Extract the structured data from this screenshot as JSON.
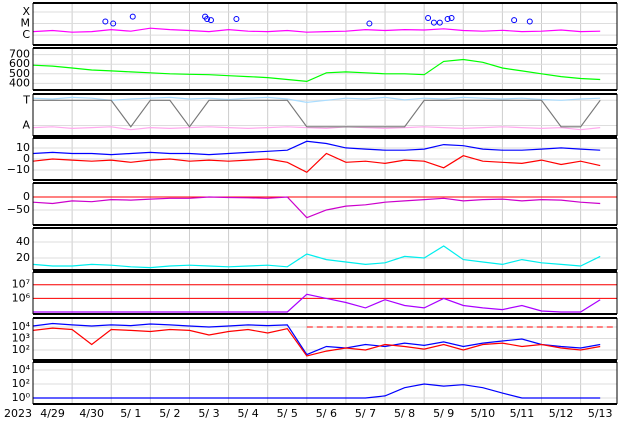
{
  "x_axis": {
    "year": "2023",
    "x": [
      0,
      0.5,
      1,
      1.5,
      2,
      2.5,
      3,
      3.5,
      4,
      4.5,
      5,
      5.5,
      6,
      6.5,
      7,
      7.5,
      8,
      8.5,
      9,
      9.5,
      10,
      10.5,
      11,
      11.5,
      12,
      12.5,
      13,
      13.5,
      14,
      14.5
    ],
    "xlim": [
      0,
      14.93
    ],
    "xticks": [
      {
        "value": 0.5,
        "label": "4/29"
      },
      {
        "value": 1.5,
        "label": "4/30"
      },
      {
        "value": 2.5,
        "label": "5/ 1"
      },
      {
        "value": 3.5,
        "label": "5/ 2"
      },
      {
        "value": 4.5,
        "label": "5/ 3"
      },
      {
        "value": 5.5,
        "label": "5/ 4"
      },
      {
        "value": 6.5,
        "label": "5/ 5"
      },
      {
        "value": 7.5,
        "label": "5/ 6"
      },
      {
        "value": 8.5,
        "label": "5/ 7"
      },
      {
        "value": 9.5,
        "label": "5/ 8"
      },
      {
        "value": 10.5,
        "label": "5/ 9"
      },
      {
        "value": 11.5,
        "label": "5/10"
      },
      {
        "value": 12.5,
        "label": "5/11"
      },
      {
        "value": 13.5,
        "label": "5/12"
      },
      {
        "value": 14.5,
        "label": "5/13"
      }
    ],
    "xgrid": [
      1,
      2,
      3,
      4,
      5,
      6,
      7,
      8,
      9,
      10,
      11,
      12,
      13,
      14
    ]
  },
  "chart_data": [
    {
      "type": "line",
      "log": true,
      "ylim": [
        1.4e-07,
        0.0006
      ],
      "yticks": [
        {
          "value": 0.0001,
          "label": "X"
        },
        {
          "value": 1e-05,
          "label": "M"
        },
        {
          "value": 1e-06,
          "label": "C"
        }
      ],
      "series": [
        {
          "color": "#ff00ff",
          "values": [
            2e-06,
            2.5e-06,
            1.8e-06,
            2e-06,
            3e-06,
            2.2e-06,
            4e-06,
            3e-06,
            2.5e-06,
            2e-06,
            3e-06,
            2.2e-06,
            2e-06,
            2.5e-06,
            1.8e-06,
            2e-06,
            2.2e-06,
            3e-06,
            2.5e-06,
            3e-06,
            2.8e-06,
            3.5e-06,
            2.5e-06,
            2.2e-06,
            2.6e-06,
            2e-06,
            2.2e-06,
            2.8e-06,
            2e-06,
            2.2e-06
          ]
        },
        {
          "color": "#0000ff",
          "marker": true,
          "x": [
            1.85,
            2.05,
            2.55,
            4.4,
            4.45,
            4.55,
            5.2,
            8.6,
            10.1,
            10.25,
            10.4,
            10.6,
            10.7,
            12.3,
            12.7
          ],
          "values": [
            1.5e-05,
            1e-05,
            4e-05,
            4e-05,
            2.5e-05,
            2e-05,
            2.5e-05,
            1e-05,
            3e-05,
            1.2e-05,
            1.2e-05,
            2.5e-05,
            3e-05,
            2e-05,
            1.5e-05
          ]
        }
      ]
    },
    {
      "type": "line",
      "ylim": [
        330,
        770
      ],
      "yticks": [
        700,
        600,
        500,
        400
      ],
      "series": [
        {
          "color": "#00ff00",
          "values": [
            590,
            580,
            560,
            540,
            530,
            520,
            510,
            500,
            495,
            490,
            480,
            470,
            460,
            440,
            420,
            510,
            520,
            510,
            500,
            500,
            490,
            630,
            650,
            620,
            560,
            530,
            500,
            470,
            450,
            440
          ]
        }
      ]
    },
    {
      "type": "line",
      "ylim": [
        0,
        1
      ],
      "yticks": [
        {
          "value": 0.85,
          "label": "T"
        },
        {
          "value": 0.25,
          "label": "A"
        }
      ],
      "series": [
        {
          "color": "#aaddff",
          "values": [
            0.9,
            0.88,
            0.92,
            0.9,
            0.85,
            0.88,
            0.9,
            0.92,
            0.88,
            0.9,
            0.87,
            0.9,
            0.92,
            0.88,
            0.8,
            0.85,
            0.9,
            0.88,
            0.92,
            0.86,
            0.9,
            0.88,
            0.92,
            0.9,
            0.88,
            0.9,
            0.87,
            0.85,
            0.88,
            0.9
          ]
        },
        {
          "color": "#ffaaee",
          "values": [
            0.2,
            0.22,
            0.18,
            0.2,
            0.22,
            0.15,
            0.2,
            0.18,
            0.2,
            0.22,
            0.2,
            0.18,
            0.2,
            0.22,
            0.2,
            0.18,
            0.22,
            0.2,
            0.18,
            0.2,
            0.22,
            0.2,
            0.18,
            0.2,
            0.22,
            0.2,
            0.18,
            0.2,
            0.15,
            0.2
          ]
        },
        {
          "color": "#777777",
          "values": [
            0.85,
            0.85,
            0.85,
            0.85,
            0.85,
            0.22,
            0.85,
            0.85,
            0.22,
            0.85,
            0.85,
            0.85,
            0.85,
            0.85,
            0.22,
            0.22,
            0.22,
            0.22,
            0.22,
            0.22,
            0.85,
            0.85,
            0.85,
            0.85,
            0.85,
            0.85,
            0.85,
            0.22,
            0.22,
            0.85
          ]
        }
      ]
    },
    {
      "type": "line",
      "ylim": [
        -19,
        19
      ],
      "yticks": [
        10,
        0,
        {
          "value": -10,
          "label": "−10"
        }
      ],
      "series": [
        {
          "color": "#0000ff",
          "values": [
            5,
            6,
            5,
            5,
            4,
            5,
            6,
            5,
            5,
            4,
            5,
            6,
            7,
            8,
            16,
            14,
            10,
            9,
            8,
            8,
            9,
            13,
            12,
            9,
            8,
            8,
            9,
            10,
            9,
            8
          ]
        },
        {
          "color": "#ff0000",
          "values": [
            -2,
            0,
            -1,
            -2,
            -1,
            -3,
            -1,
            0,
            -2,
            -1,
            -2,
            -1,
            0,
            -3,
            -12,
            5,
            -3,
            -2,
            -4,
            -1,
            -2,
            -8,
            3,
            -2,
            -3,
            -4,
            -1,
            -5,
            -2,
            -6
          ]
        }
      ]
    },
    {
      "type": "line",
      "ylim": [
        -108,
        54
      ],
      "yticks": [
        0,
        {
          "value": -50,
          "label": "−50"
        }
      ],
      "hlines": [
        {
          "value": 0,
          "color": "#ff0000"
        }
      ],
      "series": [
        {
          "color": "#cc00cc",
          "values": [
            -20,
            -25,
            -15,
            -18,
            -10,
            -12,
            -8,
            -5,
            -5,
            0,
            -2,
            -3,
            -5,
            0,
            -80,
            -50,
            -35,
            -30,
            -20,
            -15,
            -10,
            -5,
            -15,
            -10,
            -8,
            -15,
            -10,
            -12,
            -20,
            -25
          ]
        }
      ]
    },
    {
      "type": "line",
      "ylim": [
        5,
        57.5
      ],
      "yticks": [
        40,
        20
      ],
      "series": [
        {
          "color": "#00eeee",
          "values": [
            12,
            10,
            10,
            12,
            11,
            9,
            8,
            10,
            11,
            10,
            9,
            10,
            11,
            9,
            25,
            18,
            15,
            12,
            14,
            22,
            20,
            35,
            18,
            15,
            12,
            18,
            14,
            12,
            10,
            22
          ]
        }
      ]
    },
    {
      "type": "line",
      "log": true,
      "ylim": [
        72000,
        85000000
      ],
      "yticks": [
        {
          "value": 10000000,
          "label": "10⁷"
        },
        {
          "value": 1000000,
          "label": "10⁶"
        }
      ],
      "hlines": [
        {
          "value": 10000000,
          "color": "#ff0000"
        },
        {
          "value": 1000000,
          "color": "#ff0000"
        }
      ],
      "series": [
        {
          "color": "#aa00ff",
          "values": [
            100000.0,
            100000.0,
            100000.0,
            100000.0,
            100000.0,
            100000.0,
            100000.0,
            100000.0,
            100000.0,
            100000.0,
            100000.0,
            100000.0,
            100000.0,
            100000.0,
            2000000.0,
            1000000.0,
            500000.0,
            200000.0,
            800000.0,
            300000.0,
            200000.0,
            1000000.0,
            300000.0,
            200000.0,
            150000.0,
            300000.0,
            120000.0,
            100000.0,
            100000.0,
            800000.0
          ]
        }
      ]
    },
    {
      "type": "line",
      "log": true,
      "ylim": [
        13.5,
        60000
      ],
      "yticks": [
        {
          "value": 10000,
          "label": "10⁴"
        },
        {
          "value": 1000,
          "label": "10³"
        },
        {
          "value": 100,
          "label": "10²"
        }
      ],
      "hlines": [
        {
          "value": 10000,
          "color": "#ff0000",
          "dashed": true,
          "xstart": 7
        }
      ],
      "series": [
        {
          "color": "#0000ff",
          "values": [
            12000,
            20000,
            15000,
            12000,
            15000,
            13000,
            18000,
            15000,
            12000,
            10000,
            12000,
            15000,
            13000,
            15000,
            40,
            200,
            150,
            300,
            200,
            400,
            250,
            500,
            200,
            400,
            600,
            900,
            300,
            200,
            150,
            300
          ]
        },
        {
          "color": "#ff0000",
          "values": [
            5000,
            8000,
            6000,
            300,
            6000,
            5000,
            4000,
            6000,
            5000,
            2000,
            4000,
            6000,
            3000,
            7000,
            30,
            80,
            150,
            100,
            300,
            200,
            120,
            300,
            100,
            300,
            400,
            200,
            300,
            150,
            100,
            200
          ]
        }
      ]
    },
    {
      "type": "line",
      "log": true,
      "ylim": [
        0.14,
        140000
      ],
      "yticks": [
        {
          "value": 10000,
          "label": "10⁴"
        },
        {
          "value": 100,
          "label": "10²"
        },
        {
          "value": 1,
          "label": "10⁰"
        }
      ],
      "series": [
        {
          "color": "#0000ff",
          "values": [
            1,
            1,
            1,
            1,
            1,
            1,
            1,
            1,
            1,
            1,
            1,
            1,
            1,
            1,
            1,
            1,
            1,
            1,
            2,
            30,
            100,
            50,
            80,
            30,
            5,
            1,
            1,
            1,
            1,
            1
          ]
        }
      ]
    }
  ]
}
